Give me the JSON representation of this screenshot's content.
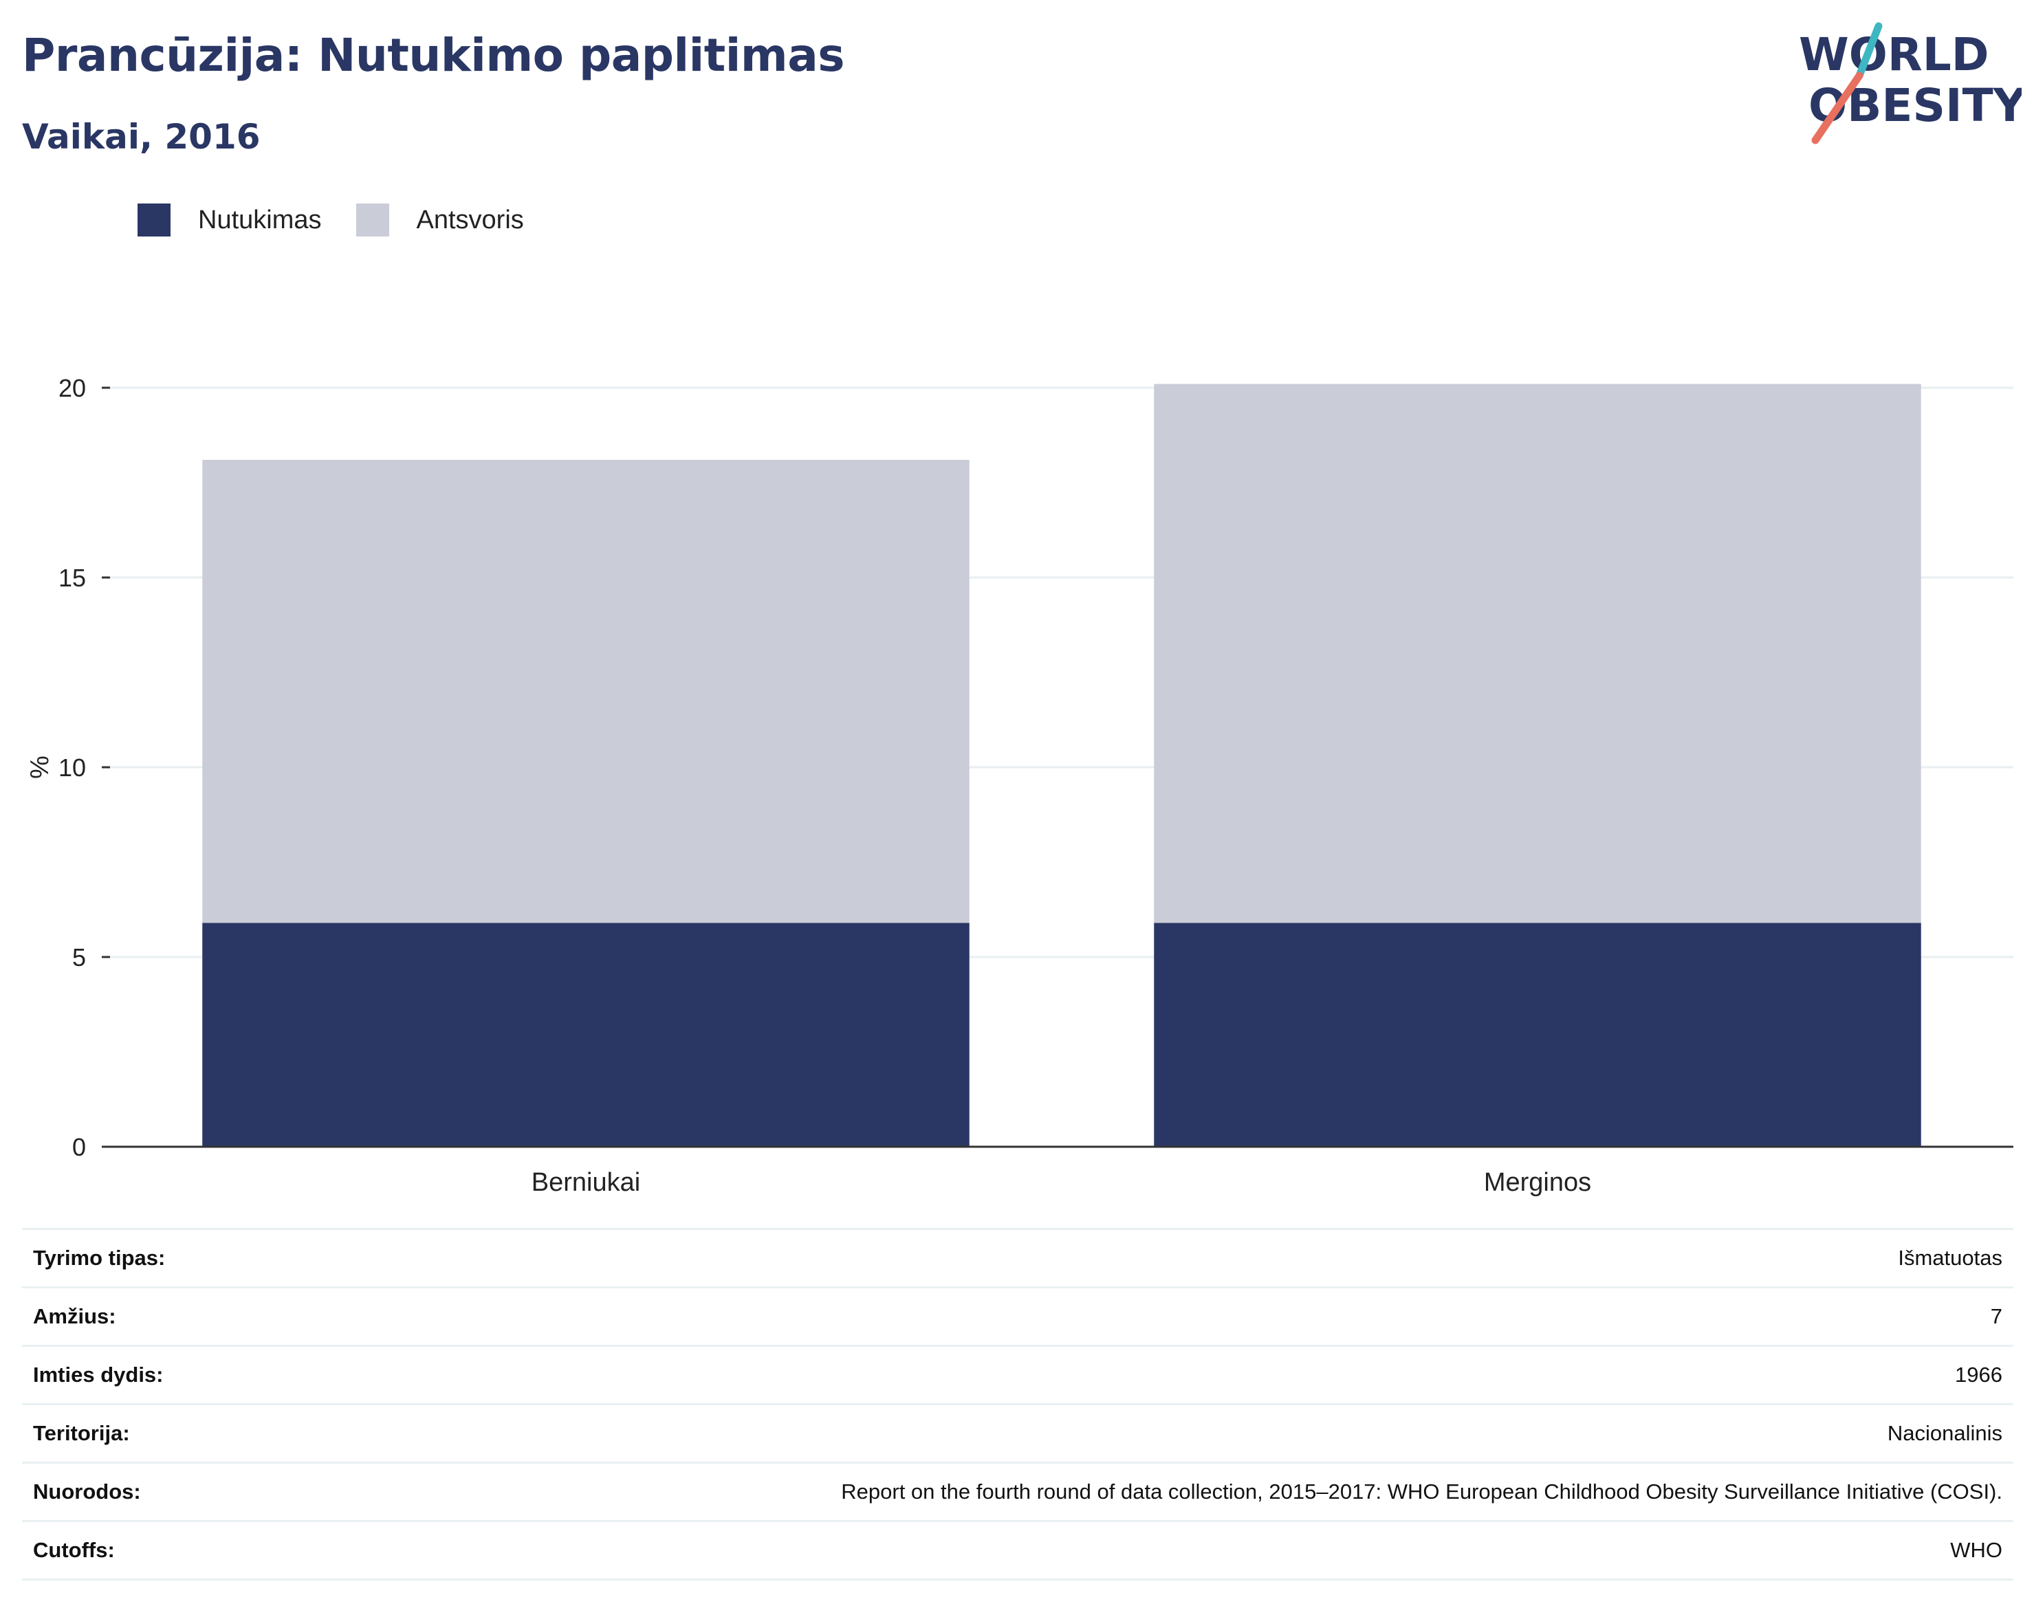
{
  "header": {
    "title": "Prancūzija: Nutukimo paplitimas",
    "subtitle": "Vaikai, 2016"
  },
  "logo": {
    "line1": "WORLD",
    "line2": "OBESITY",
    "accent_teal": "#3fb7c2",
    "accent_coral": "#e8705f"
  },
  "colors": {
    "obesity": "#2a3764",
    "overweight": "#cacdd8",
    "grid": "#e9eef0",
    "axis": "#333333"
  },
  "legend": [
    {
      "label": "Nutukimas",
      "color": "#2a3764"
    },
    {
      "label": "Antsvoris",
      "color": "#cacdd8"
    }
  ],
  "chart_data": {
    "type": "bar",
    "stacked": true,
    "categories": [
      "Berniukai",
      "Merginos"
    ],
    "series": [
      {
        "name": "Nutukimas",
        "values": [
          5.9,
          5.9
        ]
      },
      {
        "name": "Antsvoris",
        "values": [
          12.2,
          14.2
        ]
      }
    ],
    "ylabel": "%",
    "ylim": [
      0,
      20.5
    ],
    "yticks": [
      0,
      5,
      10,
      15,
      20
    ],
    "grid": true,
    "legend_position": "top-left"
  },
  "details": [
    {
      "label": "Tyrimo tipas:",
      "value": "Išmatuotas"
    },
    {
      "label": "Amžius:",
      "value": "7"
    },
    {
      "label": "Imties dydis:",
      "value": "1966"
    },
    {
      "label": "Teritorija:",
      "value": "Nacionalinis"
    },
    {
      "label": "Nuorodos:",
      "value": "Report on the fourth round of data collection, 2015–2017: WHO European Childhood Obesity Surveillance Initiative (COSI)."
    },
    {
      "label": "Cutoffs:",
      "value": "WHO"
    }
  ]
}
